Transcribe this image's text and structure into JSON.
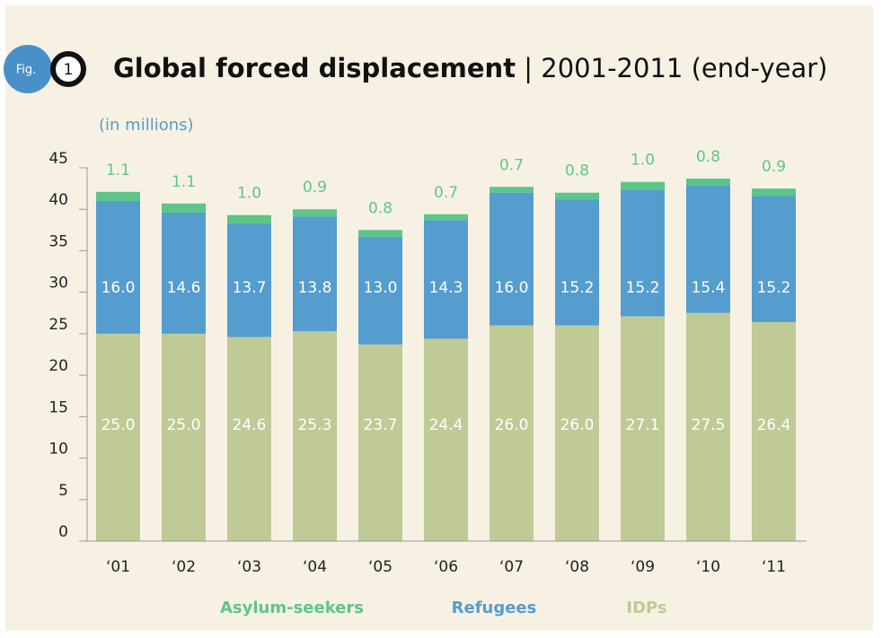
{
  "figure": {
    "badge": "Fig.",
    "number": "1"
  },
  "chart_data": {
    "type": "stacked_bar",
    "title": "Global forced displacement",
    "subtitle": "| 2001-2011 (end-year)",
    "y_label": "(in millions)",
    "categories": [
      "‘01",
      "‘02",
      "‘03",
      "‘04",
      "‘05",
      "‘06",
      "‘07",
      "‘08",
      "‘09",
      "‘10",
      "‘11"
    ],
    "series": [
      {
        "name": "IDPs",
        "color": "#bfca96",
        "label_color": "#ffffff",
        "values": [
          25.0,
          25.0,
          24.6,
          25.3,
          23.7,
          24.4,
          26.0,
          26.0,
          27.1,
          27.5,
          26.4
        ],
        "value_labels": [
          "25.0",
          "25.0",
          "24.6",
          "25.3",
          "23.7",
          "24.4",
          "26.0",
          "26.0",
          "27.1",
          "27.5",
          "26.4"
        ]
      },
      {
        "name": "Refugees",
        "color": "#559ccf",
        "label_color": "#ffffff",
        "values": [
          16.0,
          14.6,
          13.7,
          13.8,
          13.0,
          14.3,
          16.0,
          15.2,
          15.2,
          15.4,
          15.2
        ],
        "value_labels": [
          "16.0",
          "14.6",
          "13.7",
          "13.8",
          "13.0",
          "14.3",
          "16.0",
          "15.2",
          "15.2",
          "15.4",
          "15.2"
        ]
      },
      {
        "name": "Asylum-seekers",
        "color": "#5cc68a",
        "label_color": "#5cc68a",
        "values": [
          1.1,
          1.1,
          1.0,
          0.9,
          0.8,
          0.7,
          0.7,
          0.8,
          1.0,
          0.8,
          0.9
        ],
        "value_labels": [
          "1.1",
          "1.1",
          "1.0",
          "0.9",
          "0.8",
          "0.7",
          "0.7",
          "0.8",
          "1.0",
          "0.8",
          "0.9"
        ]
      }
    ],
    "ylim": [
      0,
      45
    ],
    "yticks": [
      0,
      5,
      10,
      15,
      20,
      25,
      30,
      35,
      40,
      45
    ]
  }
}
